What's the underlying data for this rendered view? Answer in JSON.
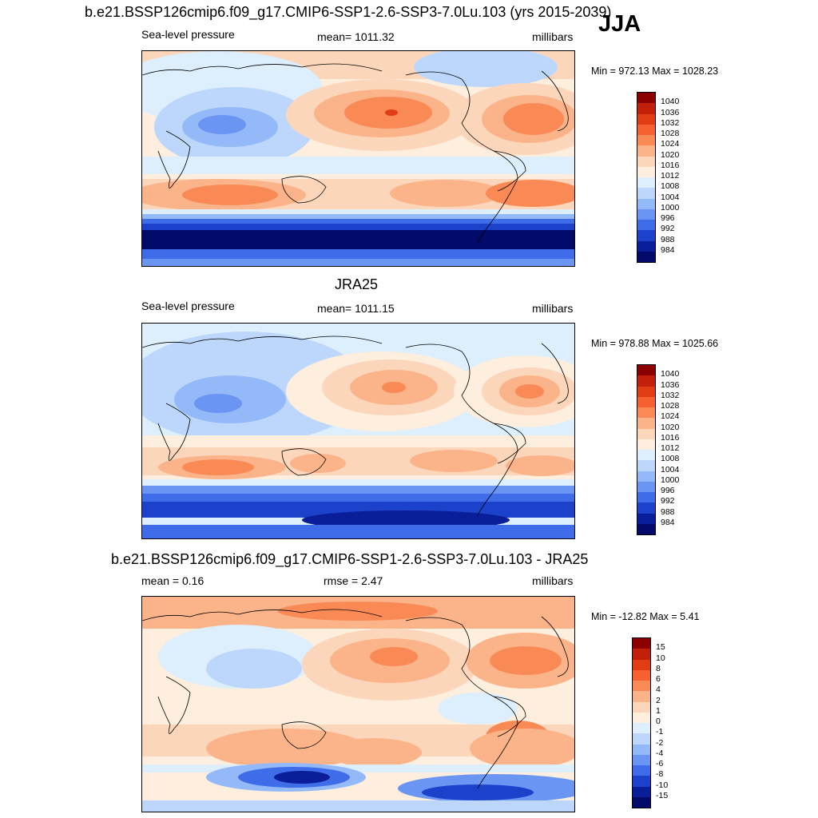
{
  "header": {
    "main_title": "b.e21.BSSP126cmip6.f09_g17.CMIP6-SSP1-2.6-SSP3-7.0Lu.103 (yrs 2015-2039)",
    "season": "JJA"
  },
  "panels": [
    {
      "id": "model",
      "left_label": "Sea-level pressure",
      "center_label": "mean= 1011.32",
      "right_label": "millibars",
      "minmax": "Min = 972.13 Max = 1028.23",
      "colorbar": {
        "labels": [
          "1040",
          "1036",
          "1032",
          "1028",
          "1024",
          "1020",
          "1016",
          "1012",
          "1008",
          "1004",
          "1000",
          "996",
          "992",
          "988",
          "984"
        ],
        "colors": [
          "#8c0000",
          "#c2200a",
          "#e23c14",
          "#f76030",
          "#f98a55",
          "#fbb38a",
          "#fcd6bb",
          "#fdeedd",
          "#ddeefc",
          "#bcd7fb",
          "#94b9f8",
          "#6a95f3",
          "#3f6de9",
          "#1c42cc",
          "#0b1e9a",
          "#020a6a"
        ]
      }
    },
    {
      "id": "obs",
      "title": "JRA25",
      "left_label": "Sea-level pressure",
      "center_label": "mean= 1011.15",
      "right_label": "millibars",
      "minmax": "Min = 978.88 Max = 1025.66",
      "colorbar": {
        "labels": [
          "1040",
          "1036",
          "1032",
          "1028",
          "1024",
          "1020",
          "1016",
          "1012",
          "1008",
          "1004",
          "1000",
          "996",
          "992",
          "988",
          "984"
        ],
        "colors": [
          "#8c0000",
          "#c2200a",
          "#e23c14",
          "#f76030",
          "#f98a55",
          "#fbb38a",
          "#fcd6bb",
          "#fdeedd",
          "#ddeefc",
          "#bcd7fb",
          "#94b9f8",
          "#6a95f3",
          "#3f6de9",
          "#1c42cc",
          "#0b1e9a",
          "#020a6a"
        ]
      }
    },
    {
      "id": "diff",
      "title": "b.e21.BSSP126cmip6.f09_g17.CMIP6-SSP1-2.6-SSP3-7.0Lu.103 - JRA25",
      "left_label": "mean =   0.16",
      "center_label": "rmse =   2.47",
      "right_label": "millibars",
      "minmax": "Min = -12.82 Max =   5.41",
      "colorbar": {
        "labels": [
          "15",
          "10",
          "8",
          "6",
          "4",
          "2",
          "1",
          "0",
          "-1",
          "-2",
          "-4",
          "-6",
          "-8",
          "-10",
          "-15"
        ],
        "colors": [
          "#8c0000",
          "#c2200a",
          "#e23c14",
          "#f76030",
          "#f98a55",
          "#fbb38a",
          "#fcd6bb",
          "#fdeedd",
          "#ddeefc",
          "#bcd7fb",
          "#94b9f8",
          "#6a95f3",
          "#3f6de9",
          "#1c42cc",
          "#0b1e9a",
          "#020a6a"
        ]
      }
    }
  ]
}
